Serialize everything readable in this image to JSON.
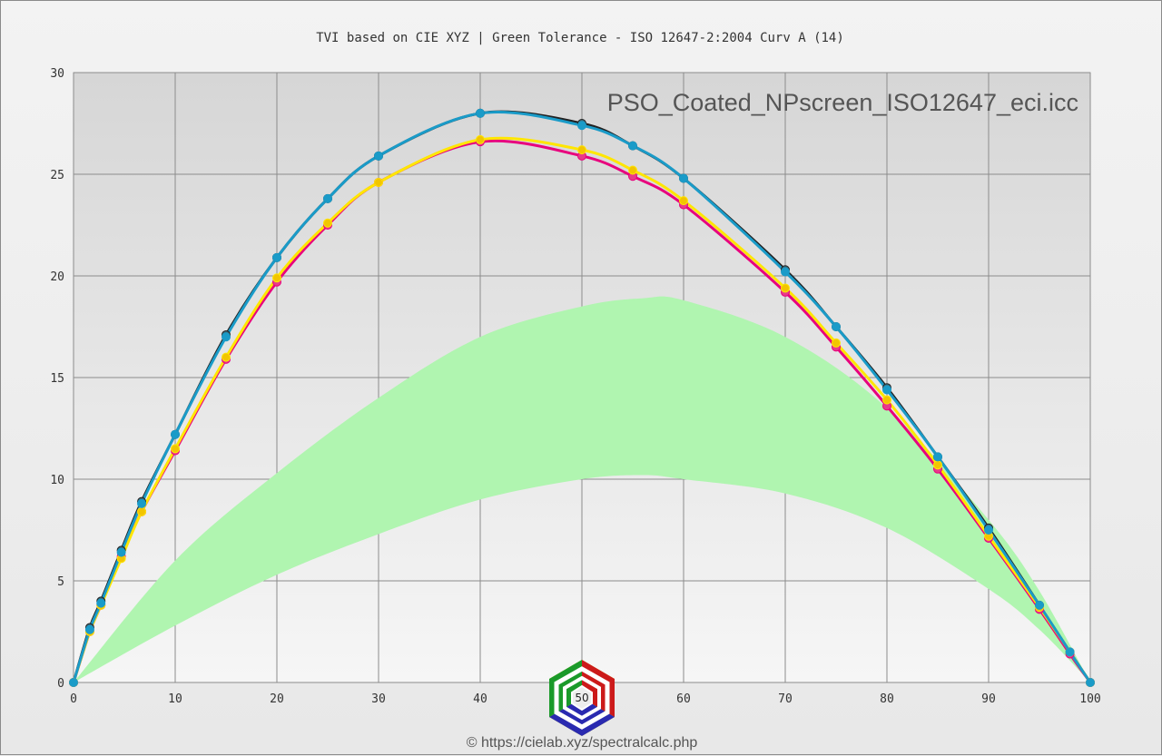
{
  "chart_data": {
    "type": "line",
    "title": "TVI based on CIE XYZ  |  Green Tolerance - ISO 12647-2:2004 Curv A (14)",
    "profile_label": "PSO_Coated_NPscreen_ISO12647_eci.icc",
    "credit": "© https://cielab.xyz/spectralcalc.php",
    "logo_label": "50",
    "xlim": [
      0,
      100
    ],
    "ylim": [
      0,
      30
    ],
    "x_ticks": [
      0,
      10,
      20,
      30,
      40,
      50,
      60,
      70,
      80,
      90,
      100
    ],
    "y_ticks": [
      0,
      5,
      10,
      15,
      20,
      25,
      30
    ],
    "grid": true,
    "x": [
      0,
      1.6,
      2.7,
      4.7,
      6.7,
      10,
      15,
      20,
      25,
      30,
      40,
      50,
      55,
      60,
      70,
      75,
      80,
      85,
      90,
      95,
      98,
      100
    ],
    "tolerance_band": {
      "color": "#b0f5b0",
      "x": [
        0,
        10,
        20,
        30,
        40,
        50,
        56,
        60,
        70,
        80,
        90,
        95,
        100
      ],
      "upper": [
        0,
        6.0,
        10.3,
        14.0,
        17.0,
        18.5,
        18.9,
        18.8,
        17.0,
        13.5,
        8.0,
        4.5,
        0
      ],
      "lower": [
        0,
        2.8,
        5.3,
        7.3,
        9.0,
        10.0,
        10.2,
        10.0,
        9.3,
        7.6,
        4.6,
        2.6,
        0
      ]
    },
    "series": [
      {
        "color": "#222222",
        "marker": "#3a6a7a",
        "values": [
          0,
          2.7,
          4.0,
          6.5,
          8.9,
          12.2,
          17.1,
          20.9,
          23.8,
          25.9,
          28.0,
          27.5,
          26.4,
          24.8,
          20.3,
          17.5,
          14.5,
          11.1,
          7.6,
          3.8,
          1.5,
          0
        ]
      },
      {
        "color": "#e8007d",
        "marker": "#e83a8a",
        "values": [
          0,
          2.5,
          3.8,
          6.2,
          8.4,
          11.4,
          15.9,
          19.7,
          22.5,
          24.6,
          26.6,
          25.9,
          24.9,
          23.5,
          19.2,
          16.5,
          13.6,
          10.5,
          7.1,
          3.6,
          1.4,
          0
        ]
      },
      {
        "color": "#ffe600",
        "marker": "#f2c500",
        "values": [
          0,
          2.5,
          3.8,
          6.1,
          8.4,
          11.5,
          16.0,
          19.9,
          22.6,
          24.6,
          26.7,
          26.2,
          25.2,
          23.7,
          19.4,
          16.7,
          13.9,
          10.7,
          7.2,
          3.7,
          1.5,
          0
        ]
      },
      {
        "color": "#1a9bc8",
        "marker": "#1a9bc8",
        "values": [
          0,
          2.6,
          3.9,
          6.4,
          8.8,
          12.2,
          17.0,
          20.9,
          23.8,
          25.9,
          28.0,
          27.4,
          26.4,
          24.8,
          20.2,
          17.5,
          14.4,
          11.1,
          7.5,
          3.8,
          1.5,
          0
        ]
      }
    ]
  }
}
